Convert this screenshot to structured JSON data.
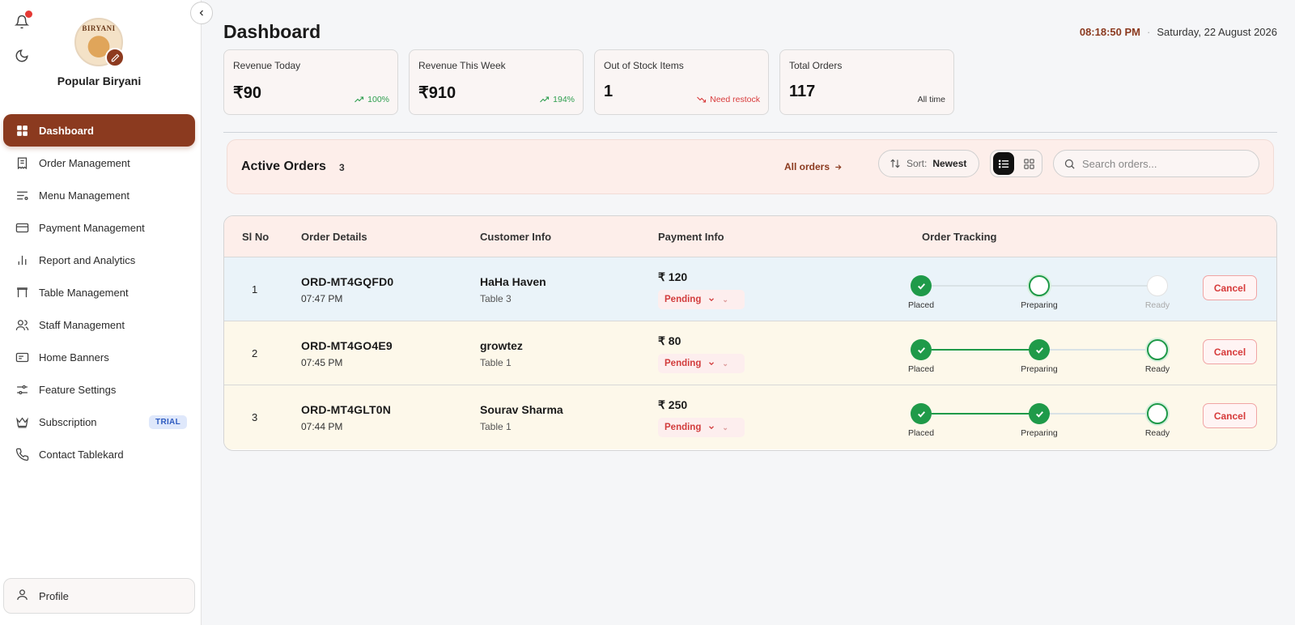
{
  "brand": {
    "name": "Popular Biryani",
    "logo_text": "BIRYANI"
  },
  "sidebar": {
    "items": [
      {
        "label": "Dashboard",
        "icon": "grid-icon",
        "active": true
      },
      {
        "label": "Order Management",
        "icon": "receipt-icon"
      },
      {
        "label": "Menu Management",
        "icon": "menu-list-icon"
      },
      {
        "label": "Payment Management",
        "icon": "card-icon"
      },
      {
        "label": "Report and Analytics",
        "icon": "bar-chart-icon"
      },
      {
        "label": "Table Management",
        "icon": "table-icon"
      },
      {
        "label": "Staff Management",
        "icon": "users-icon"
      },
      {
        "label": "Home Banners",
        "icon": "banner-icon"
      },
      {
        "label": "Feature Settings",
        "icon": "sliders-icon"
      },
      {
        "label": "Subscription",
        "icon": "crown-icon",
        "badge": "TRIAL"
      },
      {
        "label": "Contact Tablekard",
        "icon": "phone-icon"
      }
    ],
    "profile_label": "Profile"
  },
  "header": {
    "title": "Dashboard",
    "time": "08:18:50 PM",
    "date": "Saturday, 22 August 2026"
  },
  "stats": [
    {
      "label": "Revenue Today",
      "value": "₹90",
      "trend": "100%",
      "trend_type": "up"
    },
    {
      "label": "Revenue This Week",
      "value": "₹910",
      "trend": "194%",
      "trend_type": "up"
    },
    {
      "label": "Out of Stock Items",
      "value": "1",
      "trend": "Need restock",
      "trend_type": "down"
    },
    {
      "label": "Total Orders",
      "value": "117",
      "trend": "All time",
      "trend_type": "neutral"
    }
  ],
  "active_orders": {
    "title": "Active Orders",
    "count": "3",
    "all_orders_label": "All orders",
    "sort_label": "Sort:",
    "sort_value": "Newest",
    "search_placeholder": "Search orders..."
  },
  "table": {
    "headers": [
      "Sl No",
      "Order Details",
      "Customer Info",
      "Payment Info",
      "Order Tracking"
    ],
    "step_labels": [
      "Placed",
      "Preparing",
      "Ready"
    ],
    "cancel_label": "Cancel",
    "rows": [
      {
        "sl": "1",
        "order_id": "ORD-MT4GQFD0",
        "time": "07:47 PM",
        "customer": "HaHa Haven",
        "table": "Table 3",
        "amount": "₹ 120",
        "status": "Pending",
        "progress": 1
      },
      {
        "sl": "2",
        "order_id": "ORD-MT4GO4E9",
        "time": "07:45 PM",
        "customer": "growtez",
        "table": "Table 1",
        "amount": "₹ 80",
        "status": "Pending",
        "progress": 2
      },
      {
        "sl": "3",
        "order_id": "ORD-MT4GLT0N",
        "time": "07:44 PM",
        "customer": "Sourav Sharma",
        "table": "Table 1",
        "amount": "₹ 250",
        "status": "Pending",
        "progress": 2
      }
    ]
  },
  "colors": {
    "accent": "#8b3a1f",
    "success": "#1f9a49",
    "danger": "#d63a3a"
  }
}
